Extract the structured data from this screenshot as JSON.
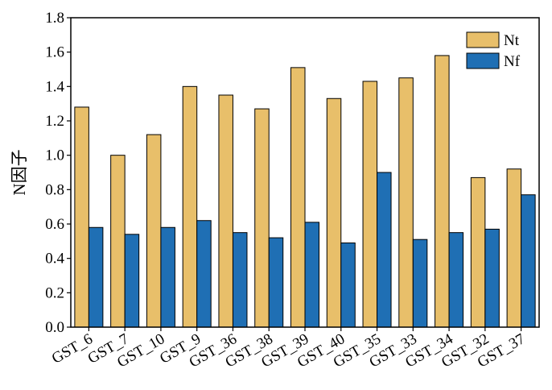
{
  "chart_data": {
    "type": "bar",
    "ylabel": "N因子",
    "xlabel": "",
    "ylim": [
      0,
      1.8
    ],
    "yticks": [
      "0.0",
      "0.2",
      "0.4",
      "0.6",
      "0.8",
      "1.0",
      "1.2",
      "1.4",
      "1.6",
      "1.8"
    ],
    "categories": [
      "GST_6",
      "GST_7",
      "GST_10",
      "GST_9",
      "GST_36",
      "GST_38",
      "GST_39",
      "GST_40",
      "GST_35",
      "GST_33",
      "GST_34",
      "GST_32",
      "GST_37"
    ],
    "series": [
      {
        "name": "Nt",
        "color": "#e8bf6a",
        "values": [
          1.28,
          1.0,
          1.12,
          1.4,
          1.35,
          1.27,
          1.51,
          1.33,
          1.43,
          1.45,
          1.58,
          0.87,
          0.92
        ]
      },
      {
        "name": "Nf",
        "color": "#1f6fb4",
        "values": [
          0.58,
          0.54,
          0.58,
          0.62,
          0.55,
          0.52,
          0.61,
          0.49,
          0.9,
          0.51,
          0.55,
          0.57,
          0.77
        ]
      }
    ],
    "legend": "top-right",
    "grid": false
  }
}
